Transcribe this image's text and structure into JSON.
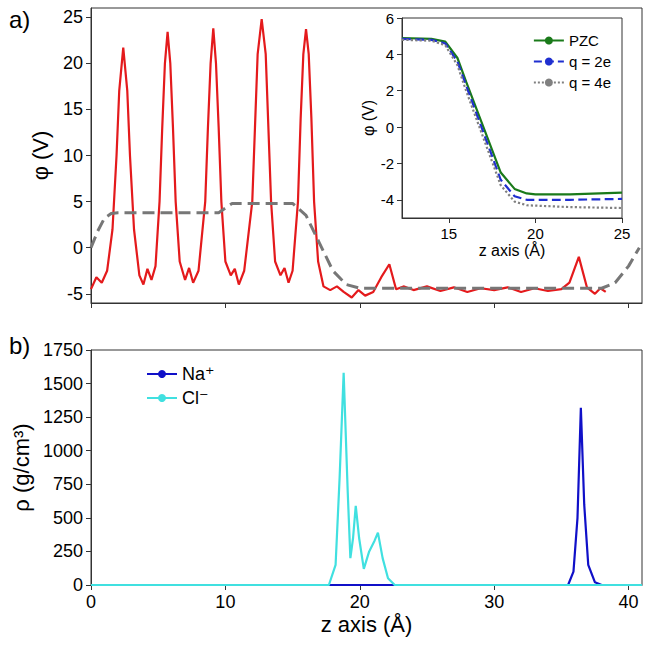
{
  "chart_data": [
    {
      "type": "line",
      "title": "a)",
      "ylabel": "φ (V)",
      "xlim": [
        0,
        41
      ],
      "xticks": [
        0,
        10,
        20,
        30,
        40
      ],
      "ylim": [
        -6,
        26
      ],
      "yticks": [
        -5,
        0,
        5,
        10,
        15,
        20,
        25
      ],
      "tick_labels": "y",
      "grid": false,
      "series": [
        {
          "color": "#e41a1c",
          "line_style": "solid",
          "x": [
            0,
            0.4,
            0.8,
            1.2,
            1.6,
            1.9,
            2.1,
            2.4,
            2.7,
            2.9,
            3.2,
            3.6,
            3.9,
            4.2,
            4.5,
            4.8,
            5.1,
            5.3,
            5.5,
            5.7,
            5.9,
            6.1,
            6.3,
            6.6,
            7.0,
            7.3,
            7.6,
            8.0,
            8.5,
            8.7,
            8.9,
            9.1,
            9.3,
            9.5,
            9.7,
            10.0,
            10.4,
            10.7,
            11.0,
            11.4,
            12.0,
            12.2,
            12.4,
            12.7,
            13.0,
            13.2,
            13.4,
            13.7,
            14.1,
            14.4,
            14.7,
            15.0,
            15.4,
            15.6,
            15.8,
            16.0,
            16.2,
            16.4,
            16.6,
            16.9,
            17.3,
            17.8,
            18.3,
            18.8,
            19.4,
            19.9,
            20.4,
            21.0,
            21.6,
            22.2,
            22.7,
            23.3,
            24,
            25,
            26,
            27,
            28,
            29,
            30,
            31,
            32,
            33,
            34,
            35,
            35.6,
            36.3,
            36.9,
            37.5,
            37.9,
            38.3
          ],
          "values": [
            -4.5,
            -3.2,
            -3.8,
            -2.5,
            2,
            10,
            17,
            21.7,
            17,
            10,
            2,
            -3,
            -4,
            -2.3,
            -3.5,
            -2,
            5,
            13,
            20,
            23.4,
            20,
            13,
            5,
            -1.5,
            -3.5,
            -2.2,
            -3.8,
            -2.5,
            5,
            13,
            20,
            23.8,
            20,
            13,
            5,
            -1.5,
            -3,
            -2.3,
            -4,
            -2.5,
            5,
            13,
            21,
            24.8,
            21,
            13,
            5,
            -1.5,
            -3,
            -2.2,
            -3.8,
            -2.5,
            5,
            14,
            21,
            23.7,
            21,
            14,
            5,
            -1.5,
            -4.2,
            -4.6,
            -4.2,
            -4.8,
            -5.4,
            -4.6,
            -5.2,
            -4.8,
            -3.2,
            -1.8,
            -4.5,
            -4.2,
            -4.6,
            -4.2,
            -4.7,
            -4.3,
            -4.8,
            -4.4,
            -4.6,
            -4.3,
            -4.8,
            -4.4,
            -4.7,
            -4.5,
            -3.8,
            -1,
            -4.3,
            -5,
            -4.4,
            -4.8
          ]
        },
        {
          "color": "#777777",
          "line_style": "dashed",
          "x": [
            0,
            0.5,
            1,
            1.5,
            2,
            9.5,
            10,
            10.5,
            15,
            16,
            17,
            18,
            19,
            20,
            38,
            39,
            40,
            40.8
          ],
          "values": [
            0,
            1.8,
            3.2,
            3.7,
            3.8,
            3.8,
            4.3,
            4.8,
            4.8,
            3.5,
            0.5,
            -2.5,
            -4,
            -4.4,
            -4.4,
            -3.8,
            -2,
            0
          ]
        }
      ]
    },
    {
      "type": "line",
      "xlabel": "z axis (Å)",
      "ylabel": "φ (V)",
      "xlim": [
        12.3,
        25
      ],
      "xticks": [
        15,
        20,
        25
      ],
      "ylim": [
        -5,
        6
      ],
      "yticks": [
        -4,
        -2,
        0,
        2,
        4,
        6
      ],
      "grid": false,
      "legend": "upper right",
      "series": [
        {
          "name": "PZC",
          "color": "#1a7a1a",
          "line_style": "solid",
          "x": [
            12.3,
            14,
            14.8,
            15.5,
            16,
            17,
            18,
            18.8,
            19.5,
            20,
            22,
            25
          ],
          "values": [
            4.9,
            4.85,
            4.7,
            3.8,
            2.5,
            0,
            -2.5,
            -3.4,
            -3.65,
            -3.7,
            -3.7,
            -3.6
          ]
        },
        {
          "name": "q = 2e",
          "color": "#1f2fd0",
          "line_style": "dashed",
          "x": [
            12.3,
            14,
            14.8,
            15.5,
            16,
            17,
            18,
            18.8,
            19.5,
            22,
            25
          ],
          "values": [
            4.85,
            4.8,
            4.6,
            3.6,
            2.3,
            -0.3,
            -2.9,
            -3.8,
            -4,
            -4.0,
            -3.95
          ]
        },
        {
          "name": "q = 4e",
          "color": "#808080",
          "line_style": "dotted",
          "x": [
            12.3,
            14,
            14.8,
            15.5,
            16,
            17,
            18,
            18.8,
            19.5,
            22,
            25
          ],
          "values": [
            4.8,
            4.75,
            4.5,
            3.4,
            2.0,
            -0.6,
            -3.2,
            -4.1,
            -4.3,
            -4.4,
            -4.45
          ]
        }
      ]
    },
    {
      "type": "line",
      "title": "b)",
      "xlabel": "z axis (Å)",
      "ylabel": "ρ (g/cm³)",
      "xlim": [
        0,
        41
      ],
      "xticks": [
        0,
        10,
        20,
        30,
        40
      ],
      "ylim": [
        0,
        1750
      ],
      "yticks": [
        0,
        250,
        500,
        750,
        1000,
        1250,
        1500,
        1750
      ],
      "grid": false,
      "legend": "upper left",
      "series": [
        {
          "name": "Na⁺",
          "color": "#1010c8",
          "line_style": "solid",
          "x": [
            0,
            35.5,
            35.9,
            36.2,
            36.45,
            36.7,
            37,
            37.5,
            38,
            41
          ],
          "values": [
            0,
            0,
            100,
            500,
            1320,
            600,
            150,
            20,
            0,
            0
          ]
        },
        {
          "name": "Cl⁻",
          "color": "#40e0e0",
          "line_style": "solid",
          "x": [
            0,
            17.7,
            18.2,
            18.5,
            18.8,
            19.1,
            19.3,
            19.5,
            19.7,
            19.95,
            20.3,
            20.7,
            21.1,
            21.35,
            21.7,
            22.1,
            22.6,
            41
          ],
          "values": [
            0,
            0,
            150,
            800,
            1580,
            700,
            200,
            350,
            590,
            350,
            120,
            250,
            330,
            390,
            200,
            50,
            0,
            0
          ]
        }
      ]
    }
  ]
}
